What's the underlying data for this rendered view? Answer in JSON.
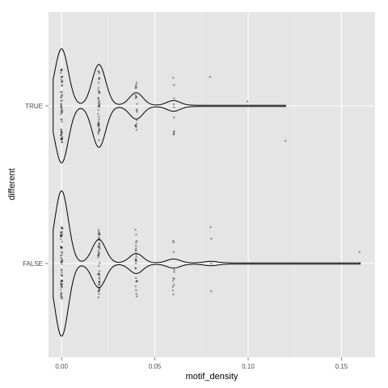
{
  "chart_data": {
    "type": "violin",
    "title": "",
    "xlabel": "motif_density",
    "ylabel": "different",
    "xlim": [
      -0.007,
      0.168
    ],
    "x_ticks": [
      0.0,
      0.05,
      0.1,
      0.15
    ],
    "x_tick_labels": [
      "0.00",
      "0.05",
      "0.10",
      "0.15"
    ],
    "categories": [
      "TRUE",
      "FALSE"
    ],
    "grid": true,
    "legend": "none",
    "colors": {
      "panel": "#e5e5e5",
      "grid_major": "#ffffff",
      "grid_minor": "#f2f2f2",
      "outline": "#000000",
      "points": "#000000"
    },
    "series": [
      {
        "category": "TRUE",
        "max_x": 0.12,
        "modes": [
          {
            "x": 0.0,
            "half_width": 0.36
          },
          {
            "x": 0.02,
            "half_width": 0.26
          },
          {
            "x": 0.04,
            "half_width": 0.08
          },
          {
            "x": 0.06,
            "half_width": 0.03
          }
        ],
        "points": [
          {
            "x": 0.0,
            "n": 55,
            "spread": 0.25
          },
          {
            "x": 0.02,
            "n": 40,
            "spread": 0.24
          },
          {
            "x": 0.04,
            "n": 20,
            "spread": 0.2
          },
          {
            "x": 0.06,
            "n": 10,
            "spread": 0.2
          },
          {
            "x": 0.08,
            "n": 1,
            "offsets": [
              -0.2
            ]
          },
          {
            "x": 0.1,
            "n": 1,
            "offsets": [
              -0.03
            ]
          },
          {
            "x": 0.12,
            "n": 1,
            "offsets": [
              0.24
            ]
          }
        ]
      },
      {
        "category": "FALSE",
        "max_x": 0.16,
        "modes": [
          {
            "x": 0.0,
            "half_width": 0.46
          },
          {
            "x": 0.02,
            "half_width": 0.15
          },
          {
            "x": 0.04,
            "half_width": 0.06
          },
          {
            "x": 0.06,
            "half_width": 0.025
          },
          {
            "x": 0.08,
            "half_width": 0.01
          }
        ],
        "points": [
          {
            "x": 0.0,
            "n": 60,
            "spread": 0.25
          },
          {
            "x": 0.02,
            "n": 45,
            "spread": 0.24
          },
          {
            "x": 0.04,
            "n": 25,
            "spread": 0.24
          },
          {
            "x": 0.06,
            "n": 12,
            "spread": 0.24
          },
          {
            "x": 0.08,
            "n": 4,
            "offsets": [
              -0.25,
              -0.17,
              0.0,
              0.19
            ]
          },
          {
            "x": 0.16,
            "n": 1,
            "offsets": [
              -0.08
            ]
          }
        ]
      }
    ]
  }
}
